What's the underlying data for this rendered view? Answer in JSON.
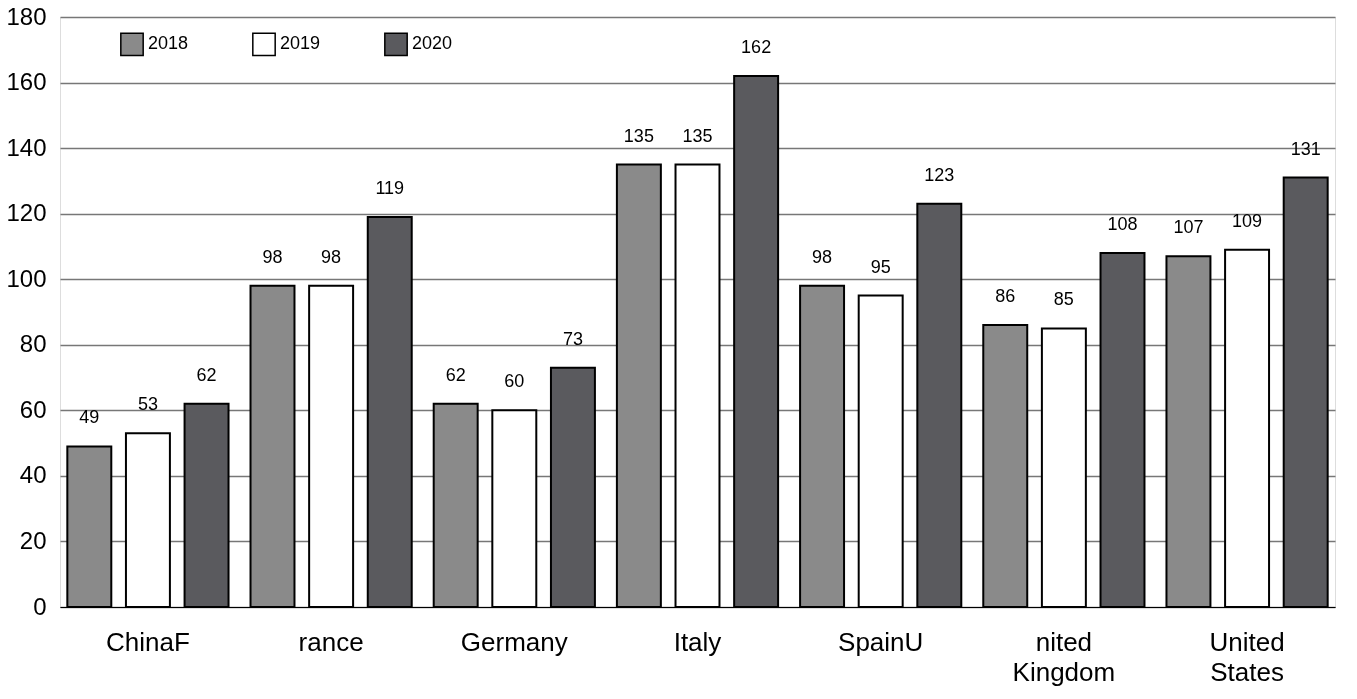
{
  "chart_data": {
    "type": "bar",
    "categories": [
      "ChinaF",
      "rance",
      "Germany",
      "Italy",
      "SpainU",
      "nited Kingdom",
      "United States"
    ],
    "series": [
      {
        "name": "2018",
        "color": "#8a8a8a",
        "values": [
          49,
          98,
          62,
          135,
          98,
          86,
          107
        ]
      },
      {
        "name": "2019",
        "color": "#ffffff",
        "values": [
          53,
          98,
          60,
          135,
          95,
          85,
          109
        ]
      },
      {
        "name": "2020",
        "color": "#5a5a5e",
        "values": [
          62,
          119,
          73,
          162,
          123,
          108,
          131
        ]
      }
    ],
    "ylim": [
      0,
      180
    ],
    "yticks": [
      0,
      20,
      40,
      60,
      80,
      100,
      120,
      140,
      160,
      180
    ],
    "grid": "y",
    "legend": "top left",
    "data_labels": true
  }
}
